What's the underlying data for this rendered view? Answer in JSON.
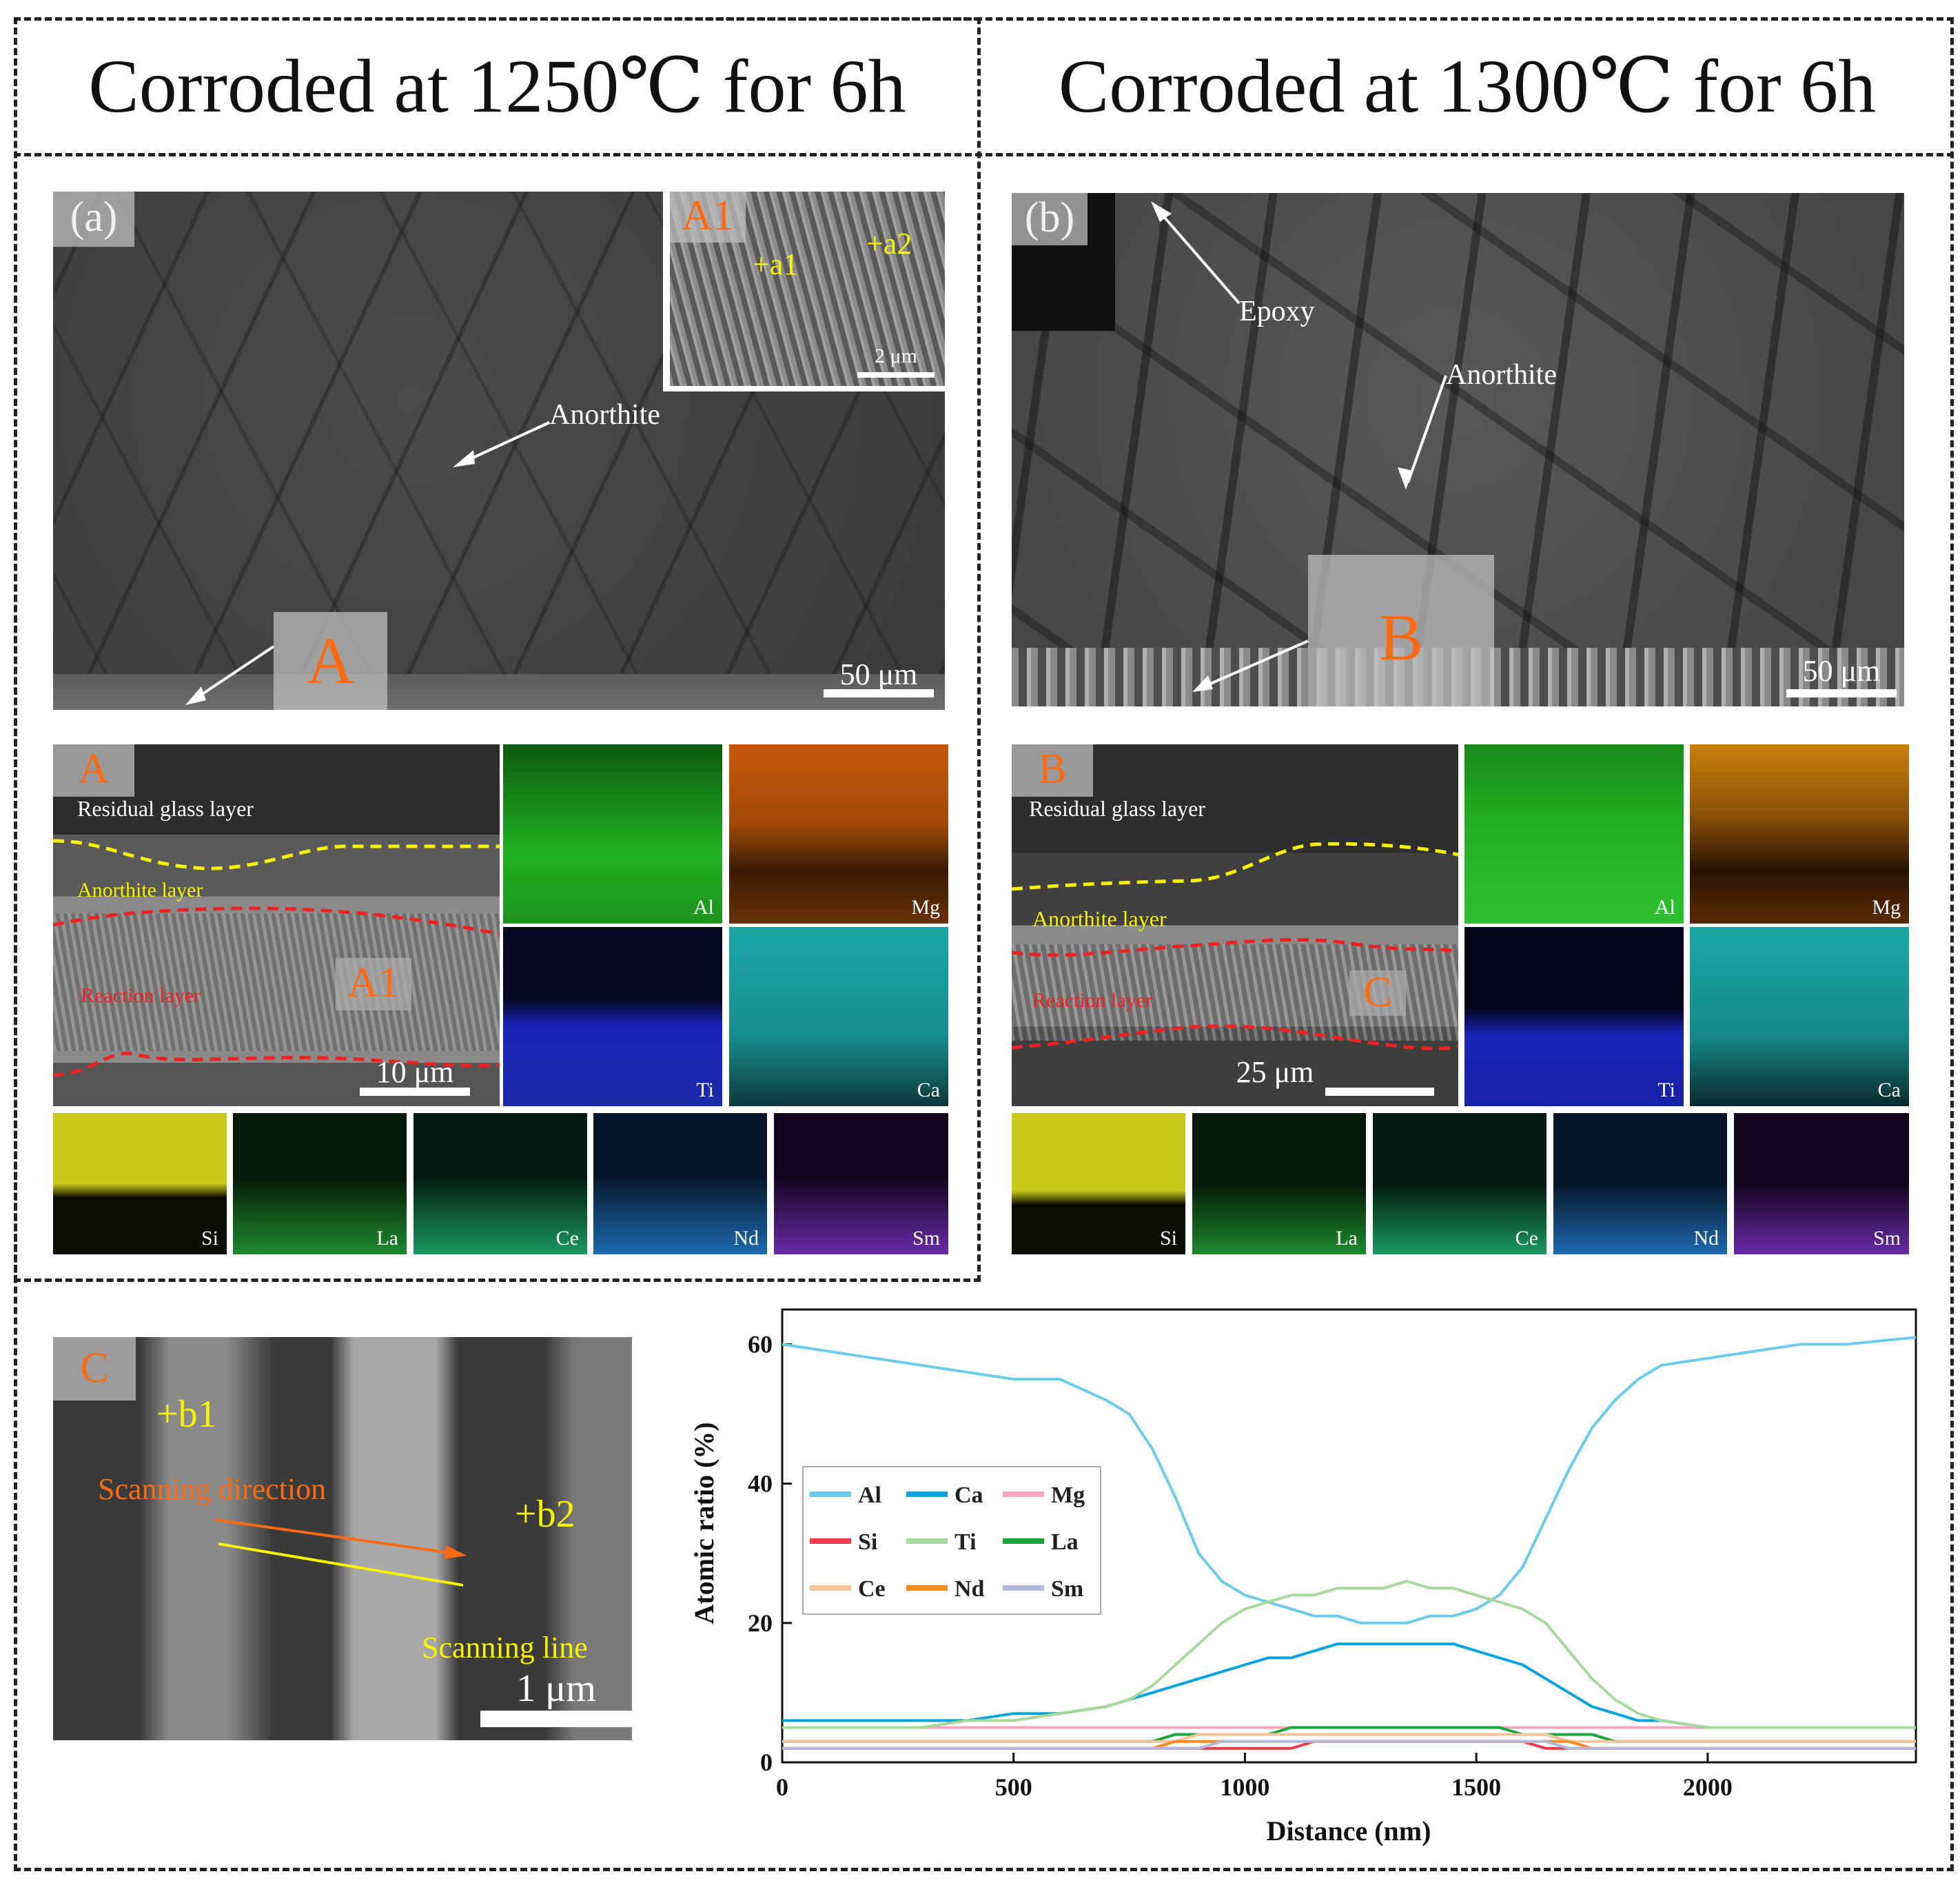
{
  "headers": {
    "left": "Corroded at 1250℃ for 6h",
    "right": "Corroded at 1300℃ for 6h"
  },
  "panel_a": {
    "label": "(a)",
    "anorthite": "Anorthite",
    "region_label": "A",
    "scale": "50 μm",
    "inset": {
      "label": "A1",
      "point1": "+a1",
      "point2": "+a2",
      "scale": "2 μm"
    }
  },
  "panel_b": {
    "label": "(b)",
    "epoxy": "Epoxy",
    "anorthite": "Anorthite",
    "region_label": "B",
    "scale": "50 μm"
  },
  "map_a": {
    "label": "A",
    "residual": "Residual glass layer",
    "anorthite_layer": "Anorthite layer",
    "reaction_layer": "Reaction layer",
    "sub_label": "A1",
    "scale": "10 μm",
    "elements": [
      {
        "name": "Al",
        "color": "#22b022"
      },
      {
        "name": "Mg",
        "color": "#c8580c"
      },
      {
        "name": "Ti",
        "color": "#1a24b8"
      },
      {
        "name": "Ca",
        "color": "#1aa6a6"
      },
      {
        "name": "Si",
        "color": "#c8c81a"
      },
      {
        "name": "La",
        "color": "#1e8a2e"
      },
      {
        "name": "Ce",
        "color": "#1a9a60"
      },
      {
        "name": "Nd",
        "color": "#1e6ab0"
      },
      {
        "name": "Sm",
        "color": "#6a2aa8"
      }
    ]
  },
  "map_b": {
    "label": "B",
    "residual": "Residual glass layer",
    "anorthite_layer": "Anorthite layer",
    "reaction_layer": "Reaction layer",
    "sub_label": "C",
    "scale": "25 μm",
    "elements": [
      {
        "name": "Al",
        "color": "#22b022"
      },
      {
        "name": "Mg",
        "color": "#c8580c"
      },
      {
        "name": "Ti",
        "color": "#1a24b8"
      },
      {
        "name": "Ca",
        "color": "#1aa6a6"
      },
      {
        "name": "Si",
        "color": "#c8c81a"
      },
      {
        "name": "La",
        "color": "#1e8a2e"
      },
      {
        "name": "Ce",
        "color": "#1a9a60"
      },
      {
        "name": "Nd",
        "color": "#1e6ab0"
      },
      {
        "name": "Sm",
        "color": "#6a2aa8"
      }
    ]
  },
  "panel_c": {
    "label": "C",
    "point1": "+b1",
    "point2": "+b2",
    "scan_direction": "Scanning direction",
    "scan_line": "Scanning line",
    "scale": "1 μm"
  },
  "chart_data": {
    "type": "line",
    "xlabel": "Distance (nm)",
    "ylabel": "Atomic ratio (%)",
    "xlim": [
      0,
      2450
    ],
    "ylim": [
      0,
      65
    ],
    "xticks": [
      0,
      500,
      1000,
      1500,
      2000
    ],
    "yticks": [
      0,
      20,
      40,
      60
    ],
    "x": [
      0,
      100,
      200,
      300,
      400,
      500,
      600,
      700,
      750,
      800,
      850,
      900,
      950,
      1000,
      1050,
      1100,
      1150,
      1200,
      1250,
      1300,
      1350,
      1400,
      1450,
      1500,
      1550,
      1600,
      1650,
      1700,
      1750,
      1800,
      1850,
      1900,
      2000,
      2100,
      2200,
      2300,
      2450
    ],
    "series": [
      {
        "name": "Al",
        "color": "#6ccbea",
        "values": [
          60,
          59,
          58,
          57,
          56,
          55,
          55,
          52,
          50,
          45,
          38,
          30,
          26,
          24,
          23,
          22,
          21,
          21,
          20,
          20,
          20,
          21,
          21,
          22,
          24,
          28,
          35,
          42,
          48,
          52,
          55,
          57,
          58,
          59,
          60,
          60,
          61
        ]
      },
      {
        "name": "Ca",
        "color": "#0aa3dc",
        "values": [
          6,
          6,
          6,
          6,
          6,
          7,
          7,
          8,
          9,
          10,
          11,
          12,
          13,
          14,
          15,
          15,
          16,
          17,
          17,
          17,
          17,
          17,
          17,
          16,
          15,
          14,
          12,
          10,
          8,
          7,
          6,
          6,
          5,
          5,
          5,
          5,
          5
        ]
      },
      {
        "name": "Mg",
        "color": "#f4a7c0",
        "values": [
          5,
          5,
          5,
          5,
          5,
          5,
          5,
          5,
          5,
          5,
          5,
          5,
          5,
          5,
          5,
          5,
          5,
          5,
          5,
          5,
          5,
          5,
          5,
          5,
          5,
          5,
          5,
          5,
          5,
          5,
          5,
          5,
          5,
          5,
          5,
          5,
          5
        ]
      },
      {
        "name": "Si",
        "color": "#ee3b4a",
        "values": [
          2,
          2,
          2,
          2,
          2,
          2,
          2,
          2,
          2,
          2,
          2,
          2,
          2,
          2,
          2,
          2,
          3,
          3,
          3,
          3,
          3,
          3,
          3,
          3,
          3,
          3,
          2,
          2,
          2,
          2,
          2,
          2,
          2,
          2,
          2,
          2,
          2
        ]
      },
      {
        "name": "Ti",
        "color": "#a6d99b",
        "values": [
          5,
          5,
          5,
          5,
          6,
          6,
          7,
          8,
          9,
          11,
          14,
          17,
          20,
          22,
          23,
          24,
          24,
          25,
          25,
          25,
          26,
          25,
          25,
          24,
          23,
          22,
          20,
          16,
          12,
          9,
          7,
          6,
          5,
          5,
          5,
          5,
          5
        ]
      },
      {
        "name": "La",
        "color": "#1aa63c",
        "values": [
          3,
          3,
          3,
          3,
          3,
          3,
          3,
          3,
          3,
          3,
          4,
          4,
          4,
          4,
          4,
          5,
          5,
          5,
          5,
          5,
          5,
          5,
          5,
          5,
          5,
          4,
          4,
          4,
          4,
          3,
          3,
          3,
          3,
          3,
          3,
          3,
          3
        ]
      },
      {
        "name": "Ce",
        "color": "#f6c29c",
        "values": [
          3,
          3,
          3,
          3,
          3,
          3,
          3,
          3,
          3,
          3,
          3,
          4,
          4,
          4,
          4,
          4,
          4,
          4,
          4,
          4,
          4,
          4,
          4,
          4,
          4,
          4,
          4,
          3,
          3,
          3,
          3,
          3,
          3,
          3,
          3,
          3,
          3
        ]
      },
      {
        "name": "Nd",
        "color": "#f58a1e",
        "values": [
          2,
          2,
          2,
          2,
          2,
          2,
          2,
          2,
          2,
          2,
          3,
          3,
          3,
          3,
          3,
          3,
          3,
          3,
          3,
          3,
          3,
          3,
          3,
          3,
          3,
          3,
          3,
          3,
          2,
          2,
          2,
          2,
          2,
          2,
          2,
          2,
          2
        ]
      },
      {
        "name": "Sm",
        "color": "#b4b8dc",
        "values": [
          2,
          2,
          2,
          2,
          2,
          2,
          2,
          2,
          2,
          2,
          2,
          2,
          3,
          3,
          3,
          3,
          3,
          3,
          3,
          3,
          3,
          3,
          3,
          3,
          3,
          3,
          3,
          2,
          2,
          2,
          2,
          2,
          2,
          2,
          2,
          2,
          2
        ]
      }
    ],
    "legend_position": "center-left"
  }
}
